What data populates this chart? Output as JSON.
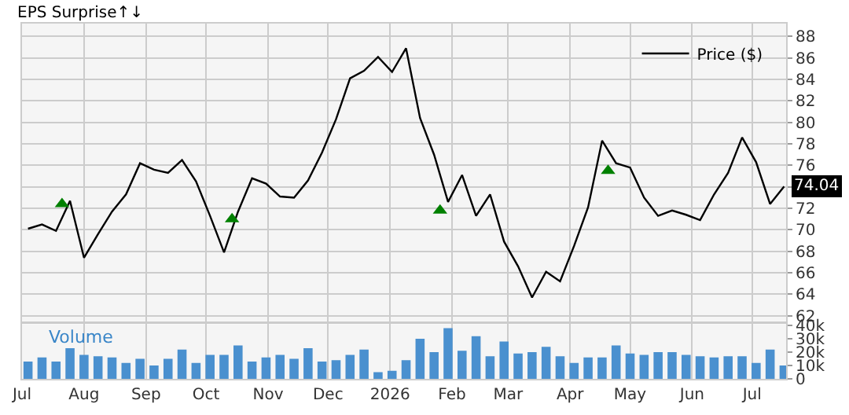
{
  "chart_data": [
    {
      "type": "line",
      "title": "EPS Surprise↑↓",
      "legend": "top right",
      "grid": true,
      "tick_labels": "y",
      "xlim": [
        "2025-07-01",
        "2026-07-18"
      ],
      "ylim": [
        61.5,
        89.2
      ],
      "xticks": [
        {
          "value": "2025-07-01",
          "label": null
        },
        {
          "value": "2025-08-01",
          "label": null
        },
        {
          "value": "2025-09-01",
          "label": null
        },
        {
          "value": "2025-10-01",
          "label": null
        },
        {
          "value": "2025-11-01",
          "label": null
        },
        {
          "value": "2025-12-01",
          "label": null
        },
        {
          "value": "2026-01-01",
          "label": null
        },
        {
          "value": "2026-02-01",
          "label": null
        },
        {
          "value": "2026-03-01",
          "label": null
        },
        {
          "value": "2026-04-01",
          "label": null
        },
        {
          "value": "2026-05-01",
          "label": null
        },
        {
          "value": "2026-06-01",
          "label": null
        },
        {
          "value": "2026-07-01",
          "label": null
        }
      ],
      "yticks": [
        62,
        64,
        66,
        68,
        70,
        72,
        {
          "value": 74,
          "label": null
        },
        76,
        78,
        80,
        82,
        84,
        86,
        88
      ],
      "annotations": [
        {
          "text": "74.04",
          "x": "2026-07-17",
          "y": 74.04
        }
      ],
      "series": [
        {
          "name": "Price ($)",
          "color": "#000000",
          "type": "line",
          "marker": "none",
          "x": [
            "2025-07-04",
            "2025-07-11",
            "2025-07-18",
            "2025-07-25",
            "2025-08-01",
            "2025-08-08",
            "2025-08-15",
            "2025-08-22",
            "2025-08-29",
            "2025-09-05",
            "2025-09-12",
            "2025-09-19",
            "2025-09-26",
            "2025-10-03",
            "2025-10-10",
            "2025-10-17",
            "2025-10-24",
            "2025-10-31",
            "2025-11-07",
            "2025-11-14",
            "2025-11-21",
            "2025-11-28",
            "2025-12-05",
            "2025-12-12",
            "2025-12-19",
            "2025-12-26",
            "2026-01-02",
            "2026-01-09",
            "2026-01-16",
            "2026-01-23",
            "2026-01-30",
            "2026-02-06",
            "2026-02-13",
            "2026-02-20",
            "2026-02-27",
            "2026-03-06",
            "2026-03-13",
            "2026-03-20",
            "2026-03-27",
            "2026-04-03",
            "2026-04-10",
            "2026-04-17",
            "2026-04-24",
            "2026-05-01",
            "2026-05-08",
            "2026-05-15",
            "2026-05-22",
            "2026-05-29",
            "2026-06-05",
            "2026-06-12",
            "2026-06-19",
            "2026-06-26",
            "2026-07-03",
            "2026-07-10",
            "2026-07-17"
          ],
          "values": [
            70.1,
            70.5,
            69.9,
            72.7,
            67.4,
            69.6,
            71.7,
            73.3,
            76.2,
            75.6,
            75.3,
            76.5,
            74.5,
            71.3,
            67.9,
            71.7,
            74.8,
            74.3,
            73.1,
            73.0,
            74.6,
            77.2,
            80.3,
            84.1,
            84.8,
            86.1,
            84.7,
            86.9,
            80.4,
            77.0,
            72.6,
            75.1,
            71.3,
            73.3,
            68.9,
            66.6,
            63.7,
            66.1,
            65.2,
            68.5,
            72.1,
            78.3,
            76.2,
            75.8,
            73.0,
            71.3,
            71.8,
            71.4,
            70.9,
            73.3,
            75.3,
            78.6,
            76.3,
            72.4,
            74.04
          ]
        },
        {
          "name": null,
          "color": "#008000",
          "type": "scatter",
          "marker": "triangle",
          "x": [
            "2025-07-21",
            "2025-10-14",
            "2026-01-26",
            "2026-04-20"
          ],
          "values": [
            72.4,
            71.0,
            71.8,
            75.5
          ]
        }
      ]
    },
    {
      "type": "bar",
      "title": "Volume",
      "grid": "x",
      "xlim": [
        "2025-07-01",
        "2026-07-18"
      ],
      "ylim": [
        0,
        41
      ],
      "xticks": [
        {
          "value": "2025-07-01",
          "label": "Jul"
        },
        {
          "value": "2025-08-01",
          "label": "Aug"
        },
        {
          "value": "2025-09-01",
          "label": "Sep"
        },
        {
          "value": "2025-10-01",
          "label": "Oct"
        },
        {
          "value": "2025-11-01",
          "label": "Nov"
        },
        {
          "value": "2025-12-01",
          "label": "Dec"
        },
        {
          "value": "2026-01-01",
          "label": "2026"
        },
        {
          "value": "2026-02-01",
          "label": "Feb"
        },
        {
          "value": "2026-03-01",
          "label": "Mar"
        },
        {
          "value": "2026-04-01",
          "label": "Apr"
        },
        {
          "value": "2026-05-01",
          "label": "May"
        },
        {
          "value": "2026-06-01",
          "label": "Jun"
        },
        {
          "value": "2026-07-01",
          "label": "Jul"
        }
      ],
      "yticks": [
        0,
        {
          "value": 10,
          "label": "10k"
        },
        {
          "value": 20,
          "label": "20k"
        },
        {
          "value": 30,
          "label": "30k"
        },
        {
          "value": 40,
          "label": "40k"
        }
      ],
      "x": [
        "2025-07-04",
        "2025-07-11",
        "2025-07-18",
        "2025-07-25",
        "2025-08-01",
        "2025-08-08",
        "2025-08-15",
        "2025-08-22",
        "2025-08-29",
        "2025-09-05",
        "2025-09-12",
        "2025-09-19",
        "2025-09-26",
        "2025-10-03",
        "2025-10-10",
        "2025-10-17",
        "2025-10-24",
        "2025-10-31",
        "2025-11-07",
        "2025-11-14",
        "2025-11-21",
        "2025-11-28",
        "2025-12-05",
        "2025-12-12",
        "2025-12-19",
        "2025-12-26",
        "2026-01-02",
        "2026-01-09",
        "2026-01-16",
        "2026-01-23",
        "2026-01-30",
        "2026-02-06",
        "2026-02-13",
        "2026-02-20",
        "2026-02-27",
        "2026-03-06",
        "2026-03-13",
        "2026-03-20",
        "2026-03-27",
        "2026-04-03",
        "2026-04-10",
        "2026-04-17",
        "2026-04-24",
        "2026-05-01",
        "2026-05-08",
        "2026-05-15",
        "2026-05-22",
        "2026-05-29",
        "2026-06-05",
        "2026-06-12",
        "2026-06-19",
        "2026-06-26",
        "2026-07-03",
        "2026-07-10",
        "2026-07-17"
      ],
      "series": [
        {
          "color": "#4a90cf",
          "values": [
            13,
            16,
            13,
            23,
            18,
            17,
            16,
            12,
            15,
            10,
            15,
            22,
            12,
            18,
            18,
            25,
            13,
            16,
            18,
            15,
            23,
            13,
            14,
            18,
            22,
            5,
            6,
            14,
            30,
            20,
            38,
            21,
            32,
            17,
            28,
            19,
            20,
            24,
            17,
            12,
            16,
            16,
            25,
            19,
            18,
            20,
            20,
            18,
            17,
            16,
            17,
            17,
            12,
            22,
            10
          ]
        }
      ]
    }
  ]
}
